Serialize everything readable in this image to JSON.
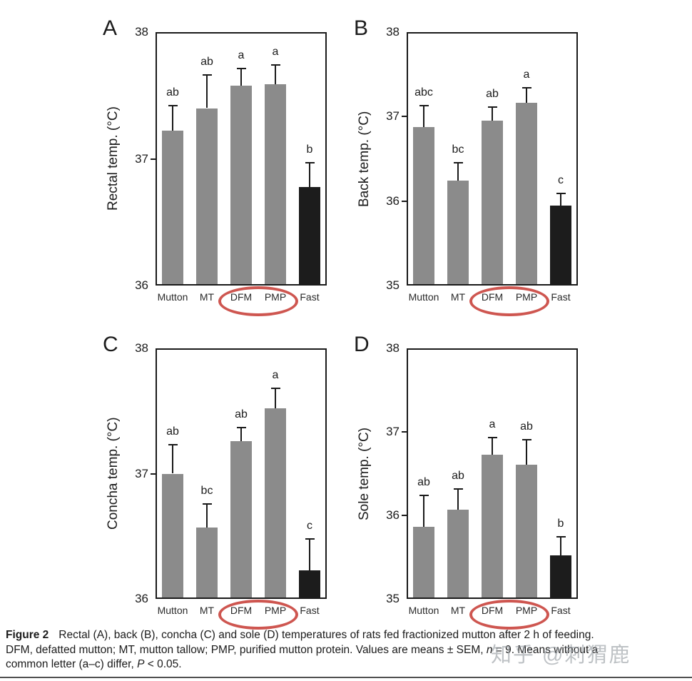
{
  "caption": {
    "label": "Figure 2",
    "line1": "Rectal (A), back (B), concha (C) and sole (D) temperatures of rats fed fractionized mutton after 2 h of feeding.",
    "line2_part1": "DFM, defatted mutton; MT, mutton tallow; PMP, purified mutton protein. Values are means ± SEM, ",
    "line2_italic": "n",
    "line2_part2": " = 9. Means without a",
    "line3_part1": "common letter (a–c) differ, ",
    "line3_italic": "P",
    "line3_part2": " < 0.05."
  },
  "watermark": "知乎 @刺猬鹿",
  "colors": {
    "bar_gray": "#8b8b8b",
    "bar_black": "#1c1c1c",
    "ellipse_red": "#ce5650",
    "axis_black": "#1a1a1a",
    "watermark_gray": "#979da3"
  },
  "chart_data": [
    {
      "panel": "A",
      "type": "bar",
      "ylabel": "Rectal temp. (°C)",
      "categories": [
        "Mutton",
        "MT",
        "DFM",
        "PMP",
        "Fast"
      ],
      "values": [
        37.22,
        37.4,
        37.58,
        37.59,
        36.78
      ],
      "errors": [
        0.2,
        0.26,
        0.13,
        0.15,
        0.19
      ],
      "sig_letters": [
        "ab",
        "ab",
        "a",
        "a",
        "b"
      ],
      "ylim": [
        36,
        38
      ],
      "yticks": [
        36,
        37,
        38
      ],
      "grid": false,
      "legend": false,
      "bar_colors": [
        "#8b8b8b",
        "#8b8b8b",
        "#8b8b8b",
        "#8b8b8b",
        "#1c1c1c"
      ],
      "circled_categories": [
        "DFM",
        "PMP"
      ]
    },
    {
      "panel": "B",
      "type": "bar",
      "ylabel": "Back temp. (°C)",
      "categories": [
        "Mutton",
        "MT",
        "DFM",
        "PMP",
        "Fast"
      ],
      "values": [
        36.88,
        36.24,
        36.95,
        37.16,
        35.95
      ],
      "errors": [
        0.25,
        0.21,
        0.16,
        0.18,
        0.14
      ],
      "sig_letters": [
        "abc",
        "bc",
        "ab",
        "a",
        "c"
      ],
      "ylim": [
        35,
        38
      ],
      "yticks": [
        35,
        36,
        37,
        38
      ],
      "grid": false,
      "legend": false,
      "bar_colors": [
        "#8b8b8b",
        "#8b8b8b",
        "#8b8b8b",
        "#8b8b8b",
        "#1c1c1c"
      ],
      "circled_categories": [
        "DFM",
        "PMP"
      ]
    },
    {
      "panel": "C",
      "type": "bar",
      "ylabel": "Concha temp. (°C)",
      "categories": [
        "Mutton",
        "MT",
        "DFM",
        "PMP",
        "Fast"
      ],
      "values": [
        37.0,
        36.57,
        37.26,
        37.52,
        36.23
      ],
      "errors": [
        0.23,
        0.19,
        0.11,
        0.16,
        0.25
      ],
      "sig_letters": [
        "ab",
        "bc",
        "ab",
        "a",
        "c"
      ],
      "ylim": [
        36,
        38
      ],
      "yticks": [
        36,
        37,
        38
      ],
      "grid": false,
      "legend": false,
      "bar_colors": [
        "#8b8b8b",
        "#8b8b8b",
        "#8b8b8b",
        "#8b8b8b",
        "#1c1c1c"
      ],
      "circled_categories": [
        "DFM",
        "PMP"
      ]
    },
    {
      "panel": "D",
      "type": "bar",
      "ylabel": "Sole temp. (°C)",
      "categories": [
        "Mutton",
        "MT",
        "DFM",
        "PMP",
        "Fast"
      ],
      "values": [
        35.86,
        36.07,
        36.73,
        36.61,
        35.52
      ],
      "errors": [
        0.38,
        0.25,
        0.2,
        0.3,
        0.22
      ],
      "sig_letters": [
        "ab",
        "ab",
        "a",
        "ab",
        "b"
      ],
      "ylim": [
        35,
        38
      ],
      "yticks": [
        35,
        36,
        37,
        38
      ],
      "grid": false,
      "legend": false,
      "bar_colors": [
        "#8b8b8b",
        "#8b8b8b",
        "#8b8b8b",
        "#8b8b8b",
        "#1c1c1c"
      ],
      "circled_categories": [
        "DFM",
        "PMP"
      ]
    }
  ]
}
